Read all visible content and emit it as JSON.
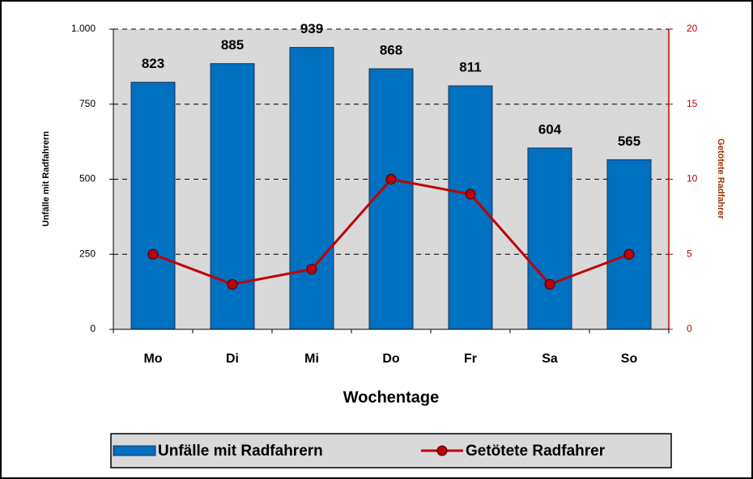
{
  "chart_data": {
    "type": "bar",
    "xlabel": "Wochentage",
    "ylabel": "Unfälle mit Radfahrern",
    "y2label": "Getötete Radfahrer",
    "categories": [
      "Mo",
      "Di",
      "Mi",
      "Do",
      "Fr",
      "Sa",
      "So"
    ],
    "series": [
      {
        "name": "Unfälle mit Radfahrern",
        "type": "bar",
        "color": "#0070c0",
        "values": [
          823,
          885,
          939,
          868,
          811,
          604,
          565
        ]
      },
      {
        "name": "Getötete Radfahrer",
        "type": "line",
        "axis": "y2",
        "color": "#c00000",
        "values": [
          5,
          3,
          4,
          10,
          9,
          3,
          5
        ]
      }
    ],
    "ylim": [
      0,
      1000
    ],
    "yticks": [
      0,
      250,
      500,
      750,
      {
        "value": 1000,
        "label": "1.000"
      }
    ],
    "y2lim": [
      0,
      20
    ],
    "y2ticks": [
      0,
      5,
      10,
      15,
      20
    ],
    "grid": true,
    "legend": "bottom"
  }
}
